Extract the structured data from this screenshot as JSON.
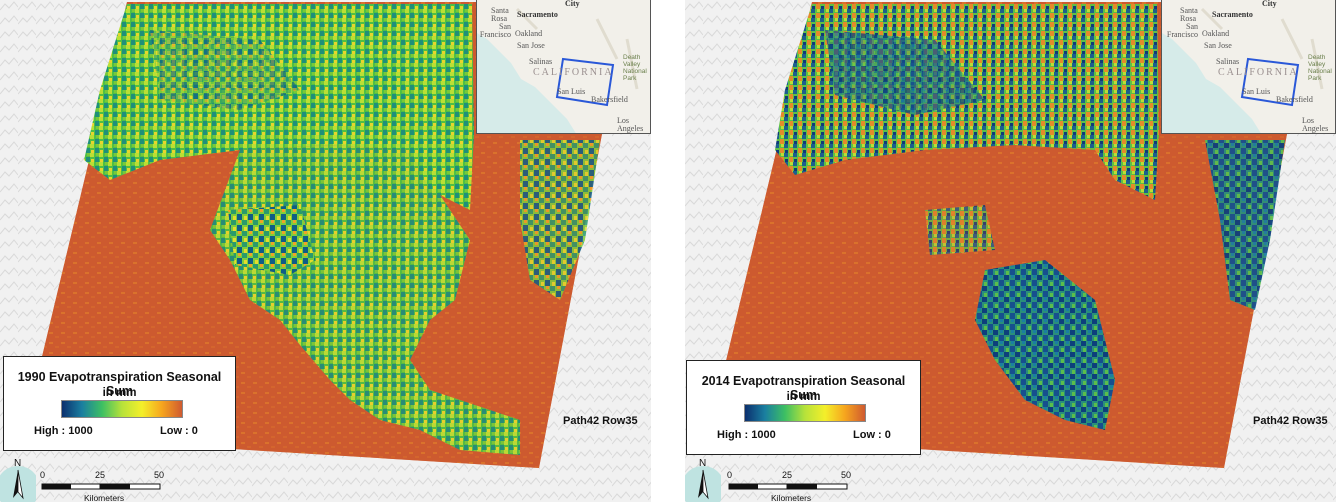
{
  "panels": [
    {
      "legend": {
        "title": "1990 Evapotranspiration Seasonal Sum",
        "unit": "in mm",
        "high_label": "High : 1000",
        "low_label": "Low : 0"
      },
      "tile_label": "Path42 Row35",
      "scale": {
        "ticks": [
          "0",
          "25",
          "50"
        ],
        "unit_label": "Kilometers"
      },
      "north_label": "N"
    },
    {
      "legend": {
        "title": "2014 Evapotranspiration Seasonal Sum",
        "unit": "in mm",
        "high_label": "High : 1000",
        "low_label": "Low : 0"
      },
      "tile_label": "Path42 Row35",
      "scale": {
        "ticks": [
          "0",
          "25",
          "50"
        ],
        "unit_label": "Kilometers"
      },
      "north_label": "N"
    }
  ],
  "inset": {
    "cities": [
      "City",
      "Sacramento",
      "Santa Rosa",
      "San Francisco",
      "Oakland",
      "San Jose",
      "Salinas",
      "San Luis",
      "Bakersfield",
      "Los Angeles"
    ],
    "region": "CALIFORNIA",
    "park": "Death Valley National Park"
  },
  "colors": {
    "ramp": [
      "#0b2f6e",
      "#1a7fa0",
      "#3dbf63",
      "#b7e23a",
      "#f4ef2a",
      "#f6a51e",
      "#cf5a30"
    ],
    "low_et": "#cf5a30",
    "inset_frame": "#2a58d8"
  }
}
